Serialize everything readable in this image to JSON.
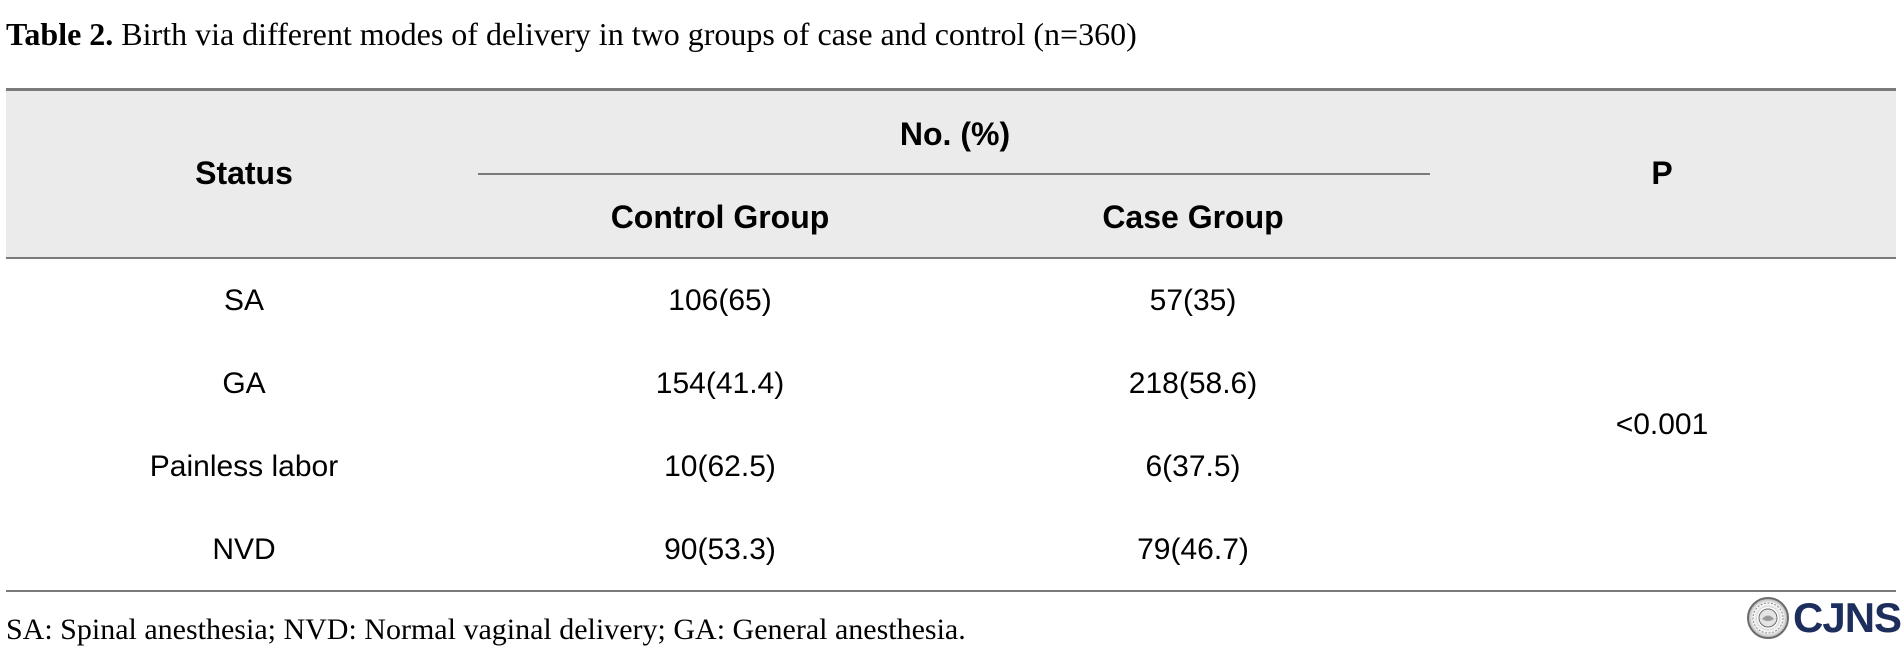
{
  "caption": {
    "label": "Table 2.",
    "text": " Birth via different modes of delivery in two groups of case and control (n=360)"
  },
  "table": {
    "headers": {
      "status": "Status",
      "group_header": "No. (%)",
      "control": "Control Group",
      "case": "Case Group",
      "p": "P"
    },
    "rows": [
      {
        "status": "SA",
        "control": "106(65)",
        "case": "57(35)"
      },
      {
        "status": "GA",
        "control": "154(41.4)",
        "case": "218(58.6)"
      },
      {
        "status": "Painless labor",
        "control": "10(62.5)",
        "case": "6(37.5)"
      },
      {
        "status": "NVD",
        "control": "90(53.3)",
        "case": "79(46.7)"
      }
    ],
    "p_value": "<0.001"
  },
  "footnote": "SA: Spinal anesthesia; NVD: Normal vaginal delivery; GA: General anesthesia.",
  "logo": {
    "text": "CJNS",
    "icon": "journal-seal-icon",
    "color": "#1d2d5c"
  }
}
